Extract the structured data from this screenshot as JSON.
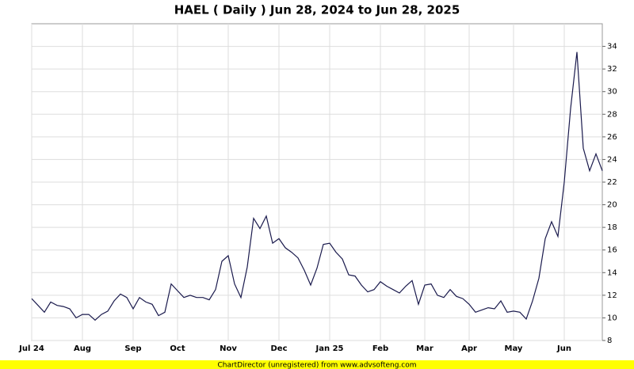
{
  "chart_data": {
    "type": "line",
    "title": "HAEL ( Daily ) Jun 28, 2024 to Jun 28, 2025",
    "footer": "ChartDirector (unregistered) from www.advsofteng.com",
    "categories": [
      "Jul 24",
      null,
      null,
      null,
      null,
      null,
      null,
      null,
      "Aug",
      null,
      null,
      null,
      null,
      null,
      null,
      null,
      "Sep",
      null,
      null,
      null,
      null,
      null,
      null,
      "Oct",
      null,
      null,
      null,
      null,
      null,
      null,
      null,
      "Nov",
      null,
      null,
      null,
      null,
      null,
      null,
      null,
      "Dec",
      null,
      null,
      null,
      null,
      null,
      null,
      null,
      "Jan 25",
      null,
      null,
      null,
      null,
      null,
      null,
      null,
      "Feb",
      null,
      null,
      null,
      null,
      null,
      null,
      "Mar",
      null,
      null,
      null,
      null,
      null,
      null,
      "Apr",
      null,
      null,
      null,
      null,
      null,
      null,
      "May",
      null,
      null,
      null,
      null,
      null,
      null,
      null,
      "Jun",
      null,
      null,
      null,
      null,
      null,
      null
    ],
    "series": [
      {
        "name": "HAEL",
        "color": "#1a1a4d",
        "values": [
          11.7,
          11.1,
          10.5,
          11.4,
          11.1,
          11.0,
          10.8,
          10.0,
          10.3,
          10.3,
          9.8,
          10.3,
          10.6,
          11.5,
          12.1,
          11.8,
          10.8,
          11.8,
          11.4,
          11.2,
          10.2,
          10.5,
          13.0,
          12.4,
          11.8,
          12.0,
          11.8,
          11.8,
          11.6,
          12.5,
          15.0,
          15.5,
          13.0,
          11.8,
          14.5,
          18.8,
          17.9,
          19.0,
          16.6,
          17.0,
          16.2,
          15.8,
          15.3,
          14.2,
          12.9,
          14.4,
          16.5,
          16.6,
          15.8,
          15.2,
          13.8,
          13.7,
          12.9,
          12.3,
          12.5,
          13.2,
          12.8,
          12.5,
          12.2,
          12.8,
          13.3,
          11.2,
          12.9,
          13.0,
          12.0,
          11.8,
          12.5,
          11.9,
          11.7,
          11.2,
          10.5,
          10.7,
          10.9,
          10.8,
          11.5,
          10.5,
          10.6,
          10.5,
          9.9,
          11.5,
          13.5,
          17.0,
          18.5,
          17.2,
          22.0,
          28.5,
          33.5,
          25.0,
          23.0,
          24.5,
          23.0
        ]
      }
    ],
    "ylim": [
      8,
      36
    ],
    "yticks": [
      8,
      10,
      12,
      14,
      16,
      18,
      20,
      22,
      24,
      26,
      28,
      30,
      32,
      34
    ],
    "grid": true
  }
}
